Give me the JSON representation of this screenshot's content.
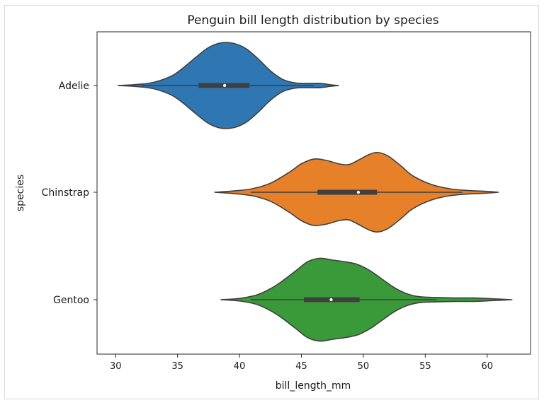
{
  "chart_data": {
    "type": "violin",
    "orientation": "horizontal",
    "title": "Penguin bill length distribution by species",
    "xlabel": "bill_length_mm",
    "ylabel": "species",
    "xlim": [
      28.5,
      63.5
    ],
    "xticks": [
      30,
      35,
      40,
      45,
      50,
      55,
      60
    ],
    "categories": [
      "Adelie",
      "Chinstrap",
      "Gentoo"
    ],
    "grid": false,
    "legend": "none",
    "series": [
      {
        "name": "Adelie",
        "color": "#2f77b2",
        "extent": [
          30.2,
          48.0
        ],
        "whiskers": [
          32.1,
          46.0
        ],
        "q1": 36.7,
        "median": 38.8,
        "q3": 40.8,
        "density": [
          [
            30.2,
            0.0
          ],
          [
            31.5,
            0.02
          ],
          [
            33.0,
            0.07
          ],
          [
            34.5,
            0.22
          ],
          [
            35.5,
            0.42
          ],
          [
            36.5,
            0.66
          ],
          [
            37.5,
            0.88
          ],
          [
            38.5,
            0.99
          ],
          [
            39.5,
            0.98
          ],
          [
            40.5,
            0.86
          ],
          [
            41.5,
            0.62
          ],
          [
            42.5,
            0.34
          ],
          [
            43.5,
            0.14
          ],
          [
            44.5,
            0.06
          ],
          [
            45.5,
            0.05
          ],
          [
            46.5,
            0.05
          ],
          [
            47.3,
            0.02
          ],
          [
            48.0,
            0.0
          ]
        ]
      },
      {
        "name": "Chinstrap",
        "color": "#e6812a",
        "extent": [
          38.0,
          60.9
        ],
        "whiskers": [
          40.9,
          58.0
        ],
        "q1": 46.3,
        "median": 49.6,
        "q3": 51.1,
        "density": [
          [
            38.0,
            0.0
          ],
          [
            39.5,
            0.03
          ],
          [
            41.0,
            0.08
          ],
          [
            42.5,
            0.21
          ],
          [
            44.0,
            0.46
          ],
          [
            45.0,
            0.66
          ],
          [
            46.0,
            0.77
          ],
          [
            47.0,
            0.74
          ],
          [
            48.0,
            0.66
          ],
          [
            48.8,
            0.64
          ],
          [
            49.5,
            0.73
          ],
          [
            50.5,
            0.88
          ],
          [
            51.2,
            0.92
          ],
          [
            52.0,
            0.84
          ],
          [
            53.0,
            0.62
          ],
          [
            54.0,
            0.38
          ],
          [
            55.5,
            0.18
          ],
          [
            57.0,
            0.08
          ],
          [
            58.5,
            0.04
          ],
          [
            60.0,
            0.02
          ],
          [
            60.9,
            0.0
          ]
        ]
      },
      {
        "name": "Gentoo",
        "color": "#3a9a3a",
        "extent": [
          38.5,
          62.0
        ],
        "whiskers": [
          40.9,
          55.9
        ],
        "q1": 45.2,
        "median": 47.4,
        "q3": 49.7,
        "density": [
          [
            38.5,
            0.0
          ],
          [
            40.0,
            0.03
          ],
          [
            41.5,
            0.12
          ],
          [
            43.0,
            0.34
          ],
          [
            44.5,
            0.66
          ],
          [
            45.5,
            0.88
          ],
          [
            46.5,
            0.96
          ],
          [
            47.5,
            0.92
          ],
          [
            48.5,
            0.88
          ],
          [
            49.5,
            0.82
          ],
          [
            50.5,
            0.68
          ],
          [
            51.5,
            0.48
          ],
          [
            52.5,
            0.28
          ],
          [
            53.5,
            0.14
          ],
          [
            54.5,
            0.07
          ],
          [
            56.0,
            0.05
          ],
          [
            57.5,
            0.04
          ],
          [
            59.0,
            0.04
          ],
          [
            60.5,
            0.02
          ],
          [
            62.0,
            0.0
          ]
        ]
      }
    ]
  }
}
